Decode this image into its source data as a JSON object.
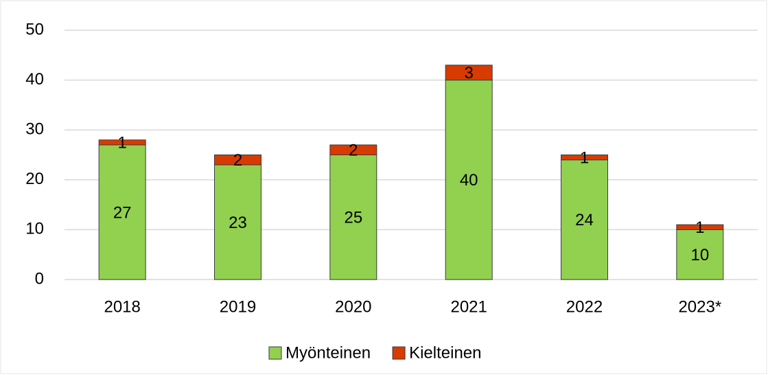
{
  "chart_data": {
    "type": "bar",
    "stacked": true,
    "categories": [
      "2018",
      "2019",
      "2020",
      "2021",
      "2022",
      "2023*"
    ],
    "series": [
      {
        "name": "Myönteinen",
        "color": "#92d050",
        "values": [
          27,
          23,
          25,
          40,
          24,
          10
        ]
      },
      {
        "name": "Kielteinen",
        "color": "#d83b01",
        "values": [
          1,
          2,
          2,
          3,
          1,
          1
        ]
      }
    ],
    "ylim": [
      0,
      50
    ],
    "yticks": [
      0,
      10,
      20,
      30,
      40,
      50
    ],
    "grid": true,
    "legend": "bottom"
  }
}
